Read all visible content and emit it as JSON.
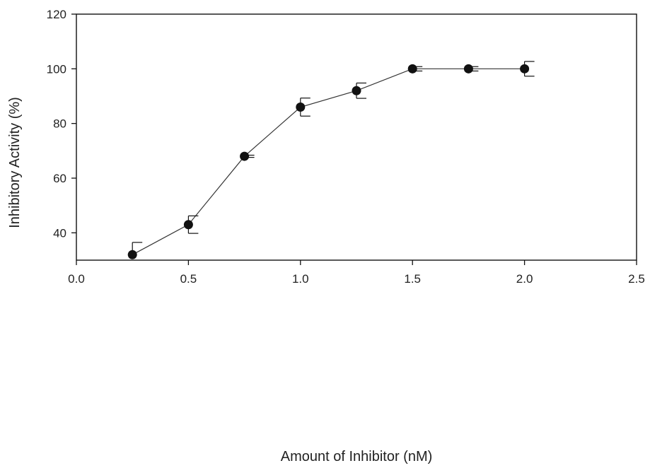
{
  "chart_data": {
    "type": "line",
    "xlabel": "Amount of Inhibitor (nM)",
    "ylabel": "Inhibitory Activity (%)",
    "xlim": [
      0.0,
      2.5
    ],
    "ylim": [
      30,
      120
    ],
    "x_ticks": [
      "0.0",
      "0.5",
      "1.0",
      "1.5",
      "2.0",
      "2.5"
    ],
    "y_ticks": [
      "40",
      "60",
      "80",
      "100",
      "120"
    ],
    "grid": false,
    "series": [
      {
        "x": [
          0.25,
          0.5,
          0.75,
          1.0,
          1.25,
          1.5,
          1.75,
          2.0
        ],
        "y": [
          32,
          43,
          68,
          86,
          92,
          100,
          100,
          100
        ],
        "err_upper": [
          4.5,
          3.2,
          0.4,
          3.3,
          2.8,
          0.8,
          0.8,
          2.7
        ],
        "err_lower": [
          0,
          3.2,
          0.4,
          3.3,
          2.8,
          0.8,
          0.8,
          2.7
        ]
      }
    ],
    "marker_color": "#111111",
    "line_color": "#333333"
  }
}
